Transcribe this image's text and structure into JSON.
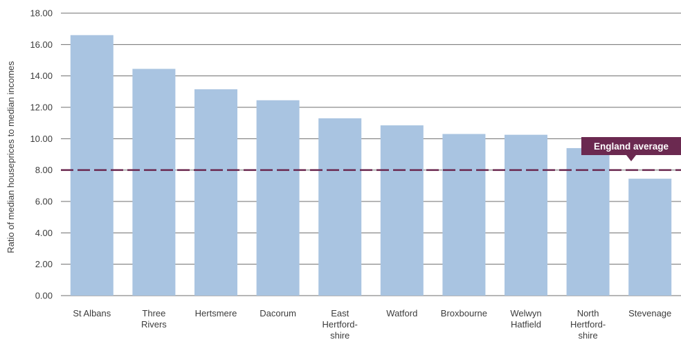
{
  "chart_data": {
    "type": "bar",
    "ylabel": "Ratio of median houseprices to median incomes",
    "xlabel": "",
    "ylim": [
      0,
      18
    ],
    "yticks": [
      "0.00",
      "2.00",
      "4.00",
      "6.00",
      "8.00",
      "10.00",
      "12.00",
      "14.00",
      "16.00",
      "18.00"
    ],
    "grid": true,
    "categories": [
      [
        "St Albans"
      ],
      [
        "Three",
        "Rivers"
      ],
      [
        "Hertsmere"
      ],
      [
        "Dacorum"
      ],
      [
        "East",
        "Hertford-",
        "shire"
      ],
      [
        "Watford"
      ],
      [
        "Broxbourne"
      ],
      [
        "Welwyn",
        "Hatfield"
      ],
      [
        "North",
        "Hertford-",
        "shire"
      ],
      [
        "Stevenage"
      ]
    ],
    "values": [
      16.6,
      14.45,
      13.15,
      12.45,
      11.3,
      10.85,
      10.3,
      10.25,
      9.4,
      7.45
    ],
    "reference_line": {
      "label": "England average",
      "value": 8.0
    },
    "colors": {
      "bar": "#a9c4e1",
      "reference": "#6b2950",
      "grid": "#6e6e6e",
      "text": "#3c3c3c"
    }
  }
}
